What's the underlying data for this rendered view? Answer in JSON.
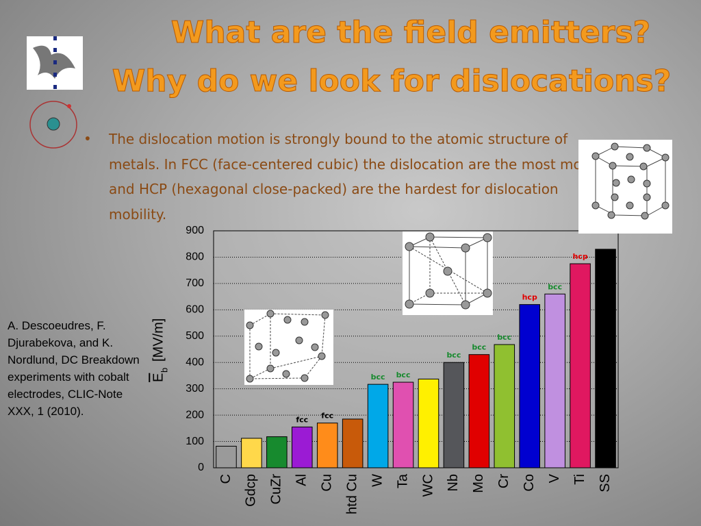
{
  "slide": {
    "title_lines": [
      "What are the field emitters?",
      "Why do we look for dislocations?"
    ],
    "bullet_lines": [
      "The dislocation motion is strongly bound to the atomic structure of",
      "metals. In FCC (face-centered cubic) the dislocation are the most mobile",
      "and HCP (hexagonal close-packed) are the hardest for dislocation",
      "mobility."
    ],
    "citation": "A. Descoeudres, F. Djurabekova, and K. Nordlund, DC Breakdown experiments with cobalt electrodes, CLIC-Note XXX, 1 (2010)."
  },
  "chart_data": {
    "type": "bar",
    "ylabel_main": "E",
    "ylabel_sub": "b",
    "ylabel_unit": "[MV/m]",
    "categories": [
      "C",
      "Gdcp",
      "CuZr",
      "Al",
      "Cu",
      "htd Cu",
      "W",
      "Ta",
      "WC",
      "Nb",
      "Mo",
      "Cr",
      "Co",
      "V",
      "Ti",
      "SS"
    ],
    "values": [
      82,
      112,
      118,
      155,
      170,
      185,
      317,
      325,
      337,
      400,
      430,
      468,
      620,
      660,
      775,
      830
    ],
    "colors": [
      "#9a9a9a",
      "#ffd84a",
      "#178a2e",
      "#9b1bd4",
      "#ff8c1a",
      "#c85a0a",
      "#00a8e8",
      "#e050b0",
      "#fff000",
      "#55565a",
      "#e00000",
      "#90c030",
      "#0000d0",
      "#c090e0",
      "#e01860",
      "#000000"
    ],
    "annotations": [
      {
        "index": 3,
        "text": "fcc",
        "color": "#000000"
      },
      {
        "index": 4,
        "text": "fcc",
        "color": "#000000"
      },
      {
        "index": 6,
        "text": "bcc",
        "color": "#178a2e"
      },
      {
        "index": 7,
        "text": "bcc",
        "color": "#178a2e"
      },
      {
        "index": 9,
        "text": "bcc",
        "color": "#178a2e"
      },
      {
        "index": 10,
        "text": "bcc",
        "color": "#178a2e"
      },
      {
        "index": 11,
        "text": "bcc",
        "color": "#178a2e"
      },
      {
        "index": 12,
        "text": "hcp",
        "color": "#e00000"
      },
      {
        "index": 13,
        "text": "bcc",
        "color": "#178a2e"
      },
      {
        "index": 14,
        "text": "hcp",
        "color": "#e00000"
      }
    ],
    "ylim": [
      0,
      900
    ],
    "yticks": [
      0,
      100,
      200,
      300,
      400,
      500,
      600,
      700,
      800,
      900
    ],
    "grid": true
  }
}
